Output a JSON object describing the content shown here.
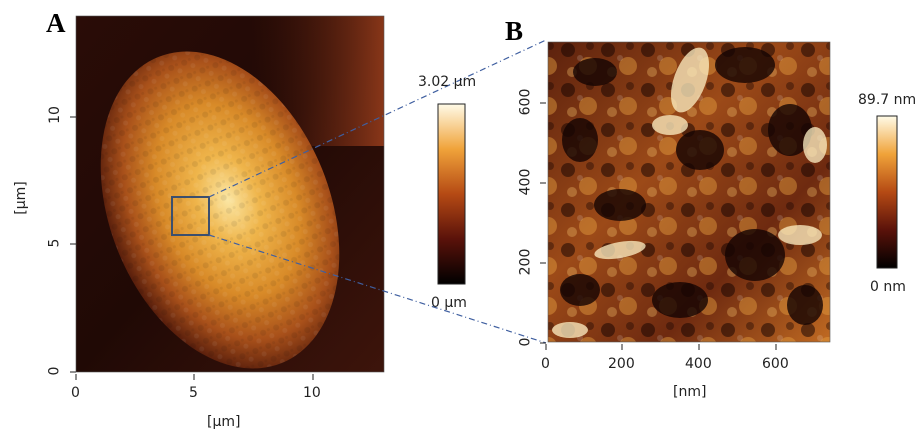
{
  "panels": {
    "a": {
      "letter": "A",
      "x_ticks": [
        "0",
        "5",
        "10"
      ],
      "y_ticks": [
        "0",
        "5",
        "10"
      ],
      "x_label": "[µm]",
      "y_label": "[µm]",
      "colorbar": {
        "max": "3.02 µm",
        "min": "0 µm"
      }
    },
    "b": {
      "letter": "B",
      "x_ticks": [
        "0",
        "200",
        "400",
        "600"
      ],
      "y_ticks": [
        "0",
        "200",
        "400",
        "600"
      ],
      "x_label": "[nm]",
      "colorbar": {
        "max": "89.7 nm",
        "min": "0 nm"
      }
    }
  },
  "colors": {
    "afm_dark": "#1a0806",
    "afm_mid": "#8a3a12",
    "afm_bright": "#e79a2e",
    "afm_highlight": "#fff3c8",
    "zoom_box": "#3b4f6e",
    "zoom_line": "#3f5fa0"
  }
}
